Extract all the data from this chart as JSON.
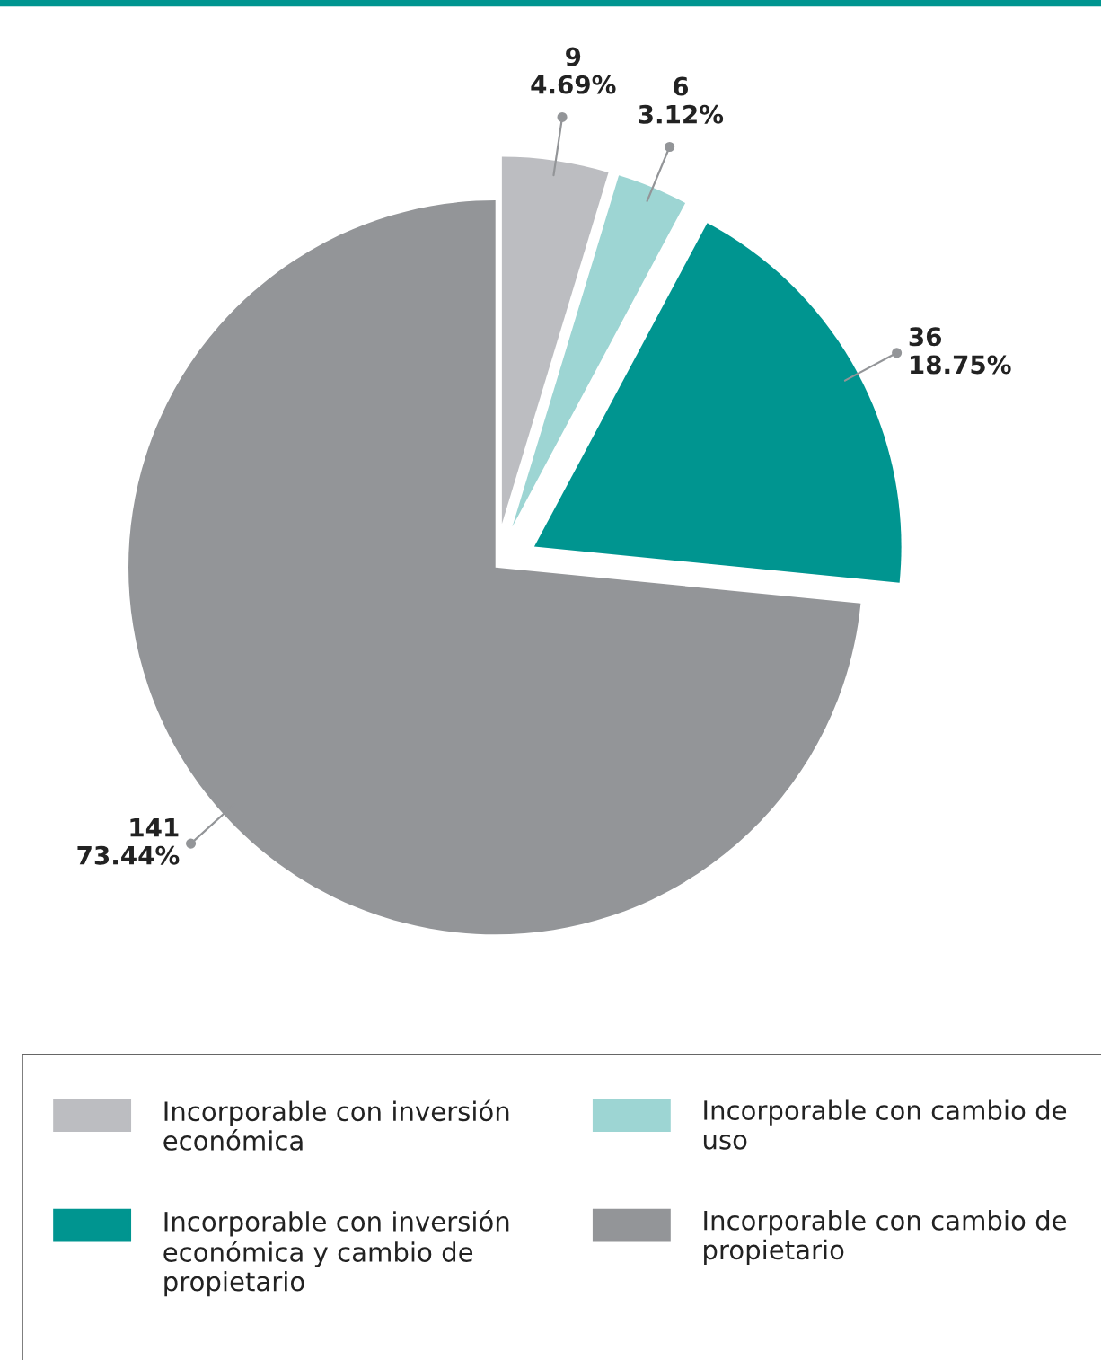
{
  "chart_data": {
    "type": "pie",
    "categories": [
      "Incorporable con inversión económica",
      "Incorporable con cambio de uso",
      "Incorporable con inversión económica y cambio de propietario",
      "Incorporable con cambio de propietario"
    ],
    "values": [
      9,
      6,
      36,
      141
    ],
    "value_labels": [
      "9\n4.69%",
      "6\n3.12%",
      "36\n18.75%",
      "141\n73.44%"
    ],
    "colors": [
      "#bcbdc1",
      "#9dd5d3",
      "#009590",
      "#939598"
    ],
    "legend": "bottom"
  }
}
